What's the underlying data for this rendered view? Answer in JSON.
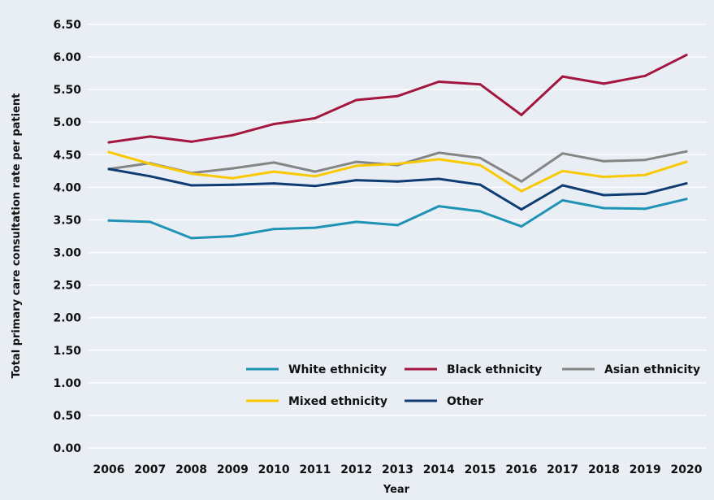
{
  "chart_data": {
    "type": "line",
    "xlabel": "Year",
    "ylabel": "Total primary care consultation rate per patient",
    "ylim": [
      0,
      6.5
    ],
    "y_ticks": [
      "0.00",
      "0.50",
      "1.00",
      "1.50",
      "2.00",
      "2.50",
      "3.00",
      "3.50",
      "4.00",
      "4.50",
      "5.00",
      "5.50",
      "6.00",
      "6.50"
    ],
    "categories": [
      "2006",
      "2007",
      "2008",
      "2009",
      "2010",
      "2011",
      "2012",
      "2013",
      "2014",
      "2015",
      "2016",
      "2017",
      "2018",
      "2019",
      "2020"
    ],
    "grid": "horizontal",
    "legend_position": "bottom-right",
    "series": [
      {
        "name": "White ethnicity",
        "color": "#1f93b5",
        "values": [
          3.49,
          3.47,
          3.22,
          3.25,
          3.36,
          3.38,
          3.47,
          3.42,
          3.71,
          3.63,
          3.4,
          3.8,
          3.68,
          3.67,
          3.82
        ]
      },
      {
        "name": "Black ethnicity",
        "color": "#a3173f",
        "values": [
          4.69,
          4.78,
          4.7,
          4.8,
          4.97,
          5.06,
          5.34,
          5.4,
          5.62,
          5.58,
          5.11,
          5.7,
          5.59,
          5.71,
          6.03
        ]
      },
      {
        "name": "Asian ethnicity",
        "color": "#858585",
        "values": [
          4.28,
          4.37,
          4.22,
          4.29,
          4.38,
          4.24,
          4.39,
          4.34,
          4.53,
          4.45,
          4.09,
          4.52,
          4.4,
          4.42,
          4.55
        ]
      },
      {
        "name": "Mixed ethnicity",
        "color": "#f9c900",
        "values": [
          4.54,
          4.36,
          4.21,
          4.14,
          4.24,
          4.17,
          4.33,
          4.36,
          4.43,
          4.34,
          3.94,
          4.25,
          4.16,
          4.19,
          4.39
        ]
      },
      {
        "name": "Other",
        "color": "#0f3d73",
        "values": [
          4.28,
          4.17,
          4.03,
          4.04,
          4.06,
          4.02,
          4.11,
          4.09,
          4.13,
          4.04,
          3.66,
          4.03,
          3.88,
          3.9,
          4.06
        ]
      }
    ]
  }
}
